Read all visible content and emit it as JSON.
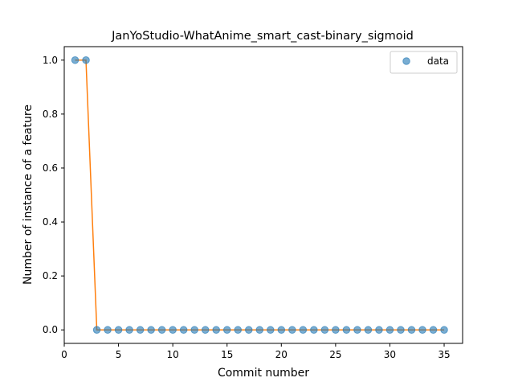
{
  "chart_data": {
    "type": "line",
    "title": "JanYoStudio-WhatAnime_smart_cast-binary_sigmoid",
    "xlabel": "Commit number",
    "ylabel": "Number of instance of a feature",
    "xlim": [
      0,
      36.7
    ],
    "ylim": [
      -0.05,
      1.05
    ],
    "xticks": [
      0,
      5,
      10,
      15,
      20,
      25,
      30,
      35
    ],
    "yticks": [
      0.0,
      0.2,
      0.4,
      0.6,
      0.8,
      1.0
    ],
    "ytick_labels": [
      "0.0",
      "0.2",
      "0.4",
      "0.6",
      "0.8",
      "1.0"
    ],
    "grid": false,
    "legend_position": "top-right",
    "x": [
      1,
      2,
      3,
      4,
      5,
      6,
      7,
      8,
      9,
      10,
      11,
      12,
      13,
      14,
      15,
      16,
      17,
      18,
      19,
      20,
      21,
      22,
      23,
      24,
      25,
      26,
      27,
      28,
      29,
      30,
      31,
      32,
      33,
      34,
      35
    ],
    "series": [
      {
        "name": "data",
        "kind": "scatter",
        "color": "#1f77b4",
        "values": [
          1,
          1,
          0,
          0,
          0,
          0,
          0,
          0,
          0,
          0,
          0,
          0,
          0,
          0,
          0,
          0,
          0,
          0,
          0,
          0,
          0,
          0,
          0,
          0,
          0,
          0,
          0,
          0,
          0,
          0,
          0,
          0,
          0,
          0,
          0
        ]
      },
      {
        "kind": "line",
        "color": "#ff7f0e",
        "values": [
          1,
          1,
          0,
          0,
          0,
          0,
          0,
          0,
          0,
          0,
          0,
          0,
          0,
          0,
          0,
          0,
          0,
          0,
          0,
          0,
          0,
          0,
          0,
          0,
          0,
          0,
          0,
          0,
          0,
          0,
          0,
          0,
          0,
          0,
          0
        ]
      }
    ]
  }
}
